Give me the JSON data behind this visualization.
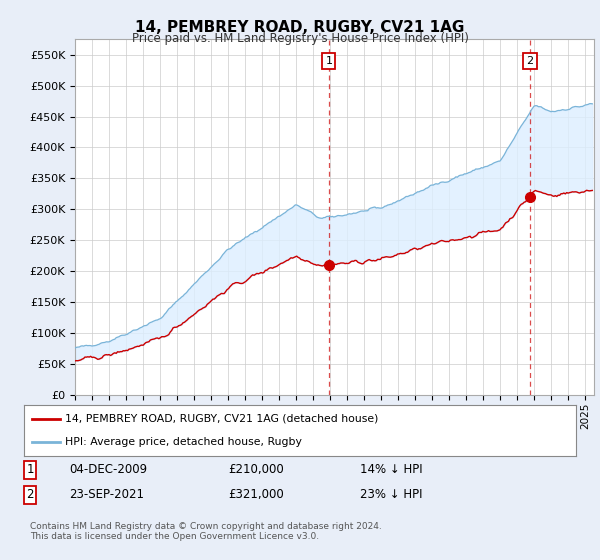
{
  "title": "14, PEMBREY ROAD, RUGBY, CV21 1AG",
  "subtitle": "Price paid vs. HM Land Registry's House Price Index (HPI)",
  "ylabel_ticks": [
    "£0",
    "£50K",
    "£100K",
    "£150K",
    "£200K",
    "£250K",
    "£300K",
    "£350K",
    "£400K",
    "£450K",
    "£500K",
    "£550K"
  ],
  "ytick_values": [
    0,
    50000,
    100000,
    150000,
    200000,
    250000,
    300000,
    350000,
    400000,
    450000,
    500000,
    550000
  ],
  "ylim": [
    0,
    575000
  ],
  "xlim_start": 1995.0,
  "xlim_end": 2025.5,
  "hpi_color": "#7ab4d8",
  "price_color": "#cc0000",
  "dashed_line_color": "#cc0000",
  "fill_color": "#ddeeff",
  "transaction1_year": 2009.92,
  "transaction1_price": 210000,
  "transaction2_year": 2021.73,
  "transaction2_price": 321000,
  "transaction1_label": "1",
  "transaction2_label": "2",
  "legend_label1": "14, PEMBREY ROAD, RUGBY, CV21 1AG (detached house)",
  "legend_label2": "HPI: Average price, detached house, Rugby",
  "annotation1": "04-DEC-2009",
  "annotation1_price": "£210,000",
  "annotation1_pct": "14% ↓ HPI",
  "annotation2": "23-SEP-2021",
  "annotation2_price": "£321,000",
  "annotation2_pct": "23% ↓ HPI",
  "footer": "Contains HM Land Registry data © Crown copyright and database right 2024.\nThis data is licensed under the Open Government Licence v3.0.",
  "background_color": "#e8eef8",
  "plot_background": "#ffffff",
  "grid_color": "#cccccc"
}
